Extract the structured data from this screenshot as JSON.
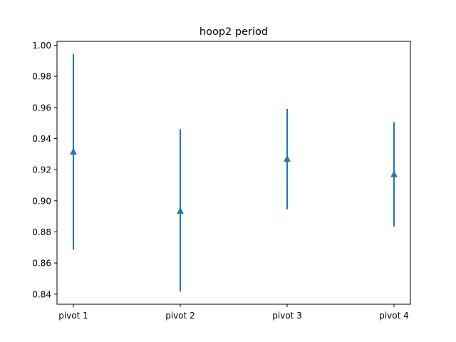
{
  "chart_data": {
    "type": "errorbar",
    "title": "hoop2 period",
    "xlabel": "",
    "ylabel": "",
    "categories": [
      "pivot 1",
      "pivot 2",
      "pivot 3",
      "pivot 4"
    ],
    "series": [
      {
        "values": [
          0.9315,
          0.8935,
          0.927,
          0.917
        ],
        "lower": [
          0.8685,
          0.8415,
          0.8945,
          0.8835
        ],
        "upper": [
          0.9945,
          0.946,
          0.959,
          0.9505
        ],
        "color": "#1f77b4",
        "marker": "triangle-up"
      }
    ],
    "ylim": [
      0.8335,
      1.0025
    ],
    "yticks": [
      0.84,
      0.86,
      0.88,
      0.9,
      0.92,
      0.94,
      0.96,
      0.98,
      1.0
    ],
    "ytick_labels": [
      "0.84",
      "0.86",
      "0.88",
      "0.90",
      "0.92",
      "0.94",
      "0.96",
      "0.98",
      "1.00"
    ],
    "grid": false,
    "legend": "none"
  }
}
